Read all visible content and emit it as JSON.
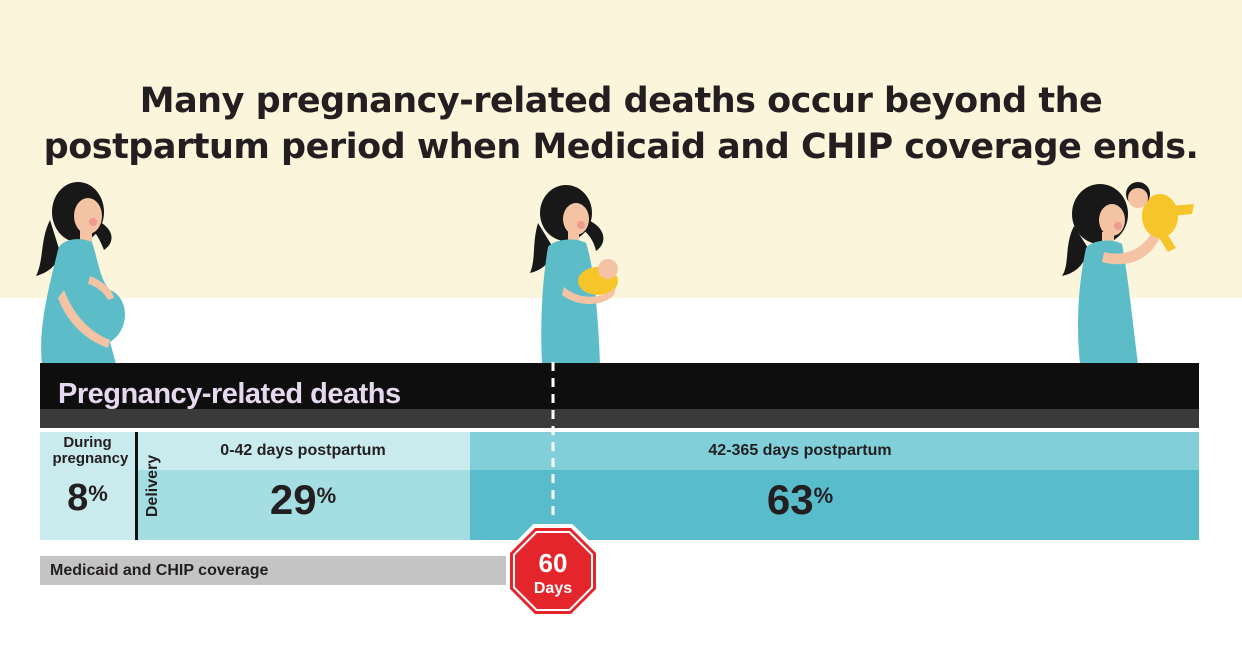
{
  "title": {
    "line1": "Many pregnancy-related deaths occur beyond the",
    "line2": "postpartum period when Medicaid and CHIP coverage ends."
  },
  "section_label": "Pregnancy-related deaths",
  "coverage_label": "Medicaid and CHIP coverage",
  "stop_sign": {
    "number": "60",
    "unit": "Days"
  },
  "chart_data": {
    "type": "bar",
    "title": "Pregnancy-related deaths",
    "unit": "%",
    "categories": [
      "During pregnancy",
      "Delivery",
      "0-42 days postpartum",
      "42-365 days postpartum"
    ],
    "segments": [
      {
        "label": "During pregnancy",
        "value": 8,
        "value_text": "8",
        "unit_text": "%"
      },
      {
        "label": "Delivery",
        "value": null
      },
      {
        "label": "0-42 days postpartum",
        "value": 29,
        "value_text": "29",
        "unit_text": "%"
      },
      {
        "label": "42-365 days postpartum",
        "value": 63,
        "value_text": "63",
        "unit_text": "%"
      }
    ],
    "coverage_end_days": 60
  },
  "colors": {
    "background_top": "#fbf5dc",
    "band": "#0e0e0e",
    "band_label": "#e6d8ef",
    "seg_light": "#c9ebee",
    "seg_mid": "#a4dde2",
    "seg_dark_header": "#80cfd9",
    "seg_dark": "#58bccb",
    "stop_red": "#e4252c",
    "dress": "#5cbdc9",
    "baby": "#f6c52a",
    "skin": "#f3c3a4",
    "hair": "#181818"
  },
  "icons": [
    "pregnant-woman-icon",
    "woman-holding-newborn-icon",
    "woman-lifting-baby-icon",
    "stop-sign-icon"
  ]
}
